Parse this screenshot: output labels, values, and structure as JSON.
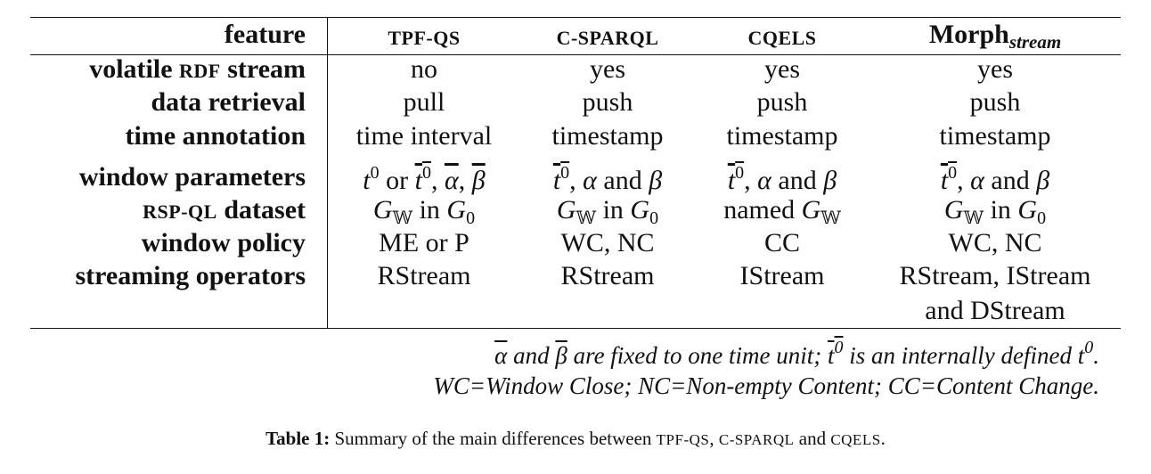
{
  "table": {
    "header": {
      "feature": "feature",
      "col1": "TPF-QS",
      "col2": "C-SPARQL",
      "col3": "CQELS",
      "col4_main": "Morph",
      "col4_sub": "stream"
    },
    "rows": {
      "volatile": {
        "label_pre": "volatile ",
        "label_sc": "RDF",
        "label_post": " stream",
        "c1": "no",
        "c2": "yes",
        "c3": "yes",
        "c4": "yes"
      },
      "retrieval": {
        "label": "data retrieval",
        "c1": "pull",
        "c2": "push",
        "c3": "push",
        "c4": "push"
      },
      "time": {
        "label": "time annotation",
        "c1": "time interval",
        "c2": "timestamp",
        "c3": "timestamp",
        "c4": "timestamp"
      },
      "window_params": {
        "label": "window parameters"
      },
      "dataset": {
        "label_sc": "RSP-QL",
        "label_post": " dataset"
      },
      "policy": {
        "label": "window policy",
        "c1": "ME or P",
        "c2": "WC, NC",
        "c3": "CC",
        "c4": "WC, NC"
      },
      "operators": {
        "label": "streaming operators",
        "c1": "RStream",
        "c2": "RStream",
        "c3": "IStream",
        "c4_line1": "RStream, IStream",
        "c4_line2": "and DStream"
      }
    },
    "notes": {
      "line2": "WC=Window Close; NC=Non-empty Content; CC=Content Change."
    }
  },
  "caption": {
    "label": "Table 1:",
    "text_pre": " Summary of the main differences between ",
    "sc1": "TPF-QS",
    "sep1": ", ",
    "sc2": "C-SPARQL",
    "sep2": " and ",
    "sc3": "CQELS",
    "end": "."
  }
}
